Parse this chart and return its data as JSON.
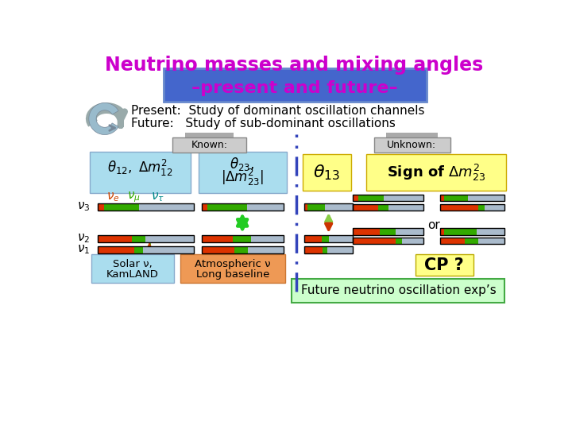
{
  "title_line1": "Neutrino masses and mixing angles",
  "title_line2": "–present and future–",
  "title_color": "#cc00cc",
  "title_bg_color": "#4466cc",
  "title_bg_border": "#6688cc",
  "bullet1": "Present:  Study of dominant oscillation channels",
  "bullet2": "Future:   Study of sub-dominant oscillations",
  "known_label": "Known:",
  "unknown_label": "Unknown:",
  "solar_label1": "Solar ν,",
  "solar_label2": "KamLAND",
  "atm_label1": "Atmospheric ν",
  "atm_label2": "Long baseline",
  "future_label": "Future neutrino oscillation exp’s",
  "cp_label": "CP ?",
  "color_red": "#dd3300",
  "color_green": "#33aa00",
  "color_gray": "#aabbcc",
  "color_known_bg": "#aaddee",
  "color_yellow": "#ffff88",
  "color_orange_bg": "#ee9955",
  "color_dashed_line": "#3344bb",
  "color_green_arrow": "#22cc22",
  "color_red_arrow": "#cc3300",
  "color_gray_arrow": "#99aaaa",
  "color_solar_border": "#88aacc",
  "color_atm_border": "#cc7733",
  "color_future_border": "#44aa44",
  "color_future_bg": "#ccffcc",
  "color_known_tab": "#aaaaaa",
  "color_unknown_tab": "#bbbb88"
}
